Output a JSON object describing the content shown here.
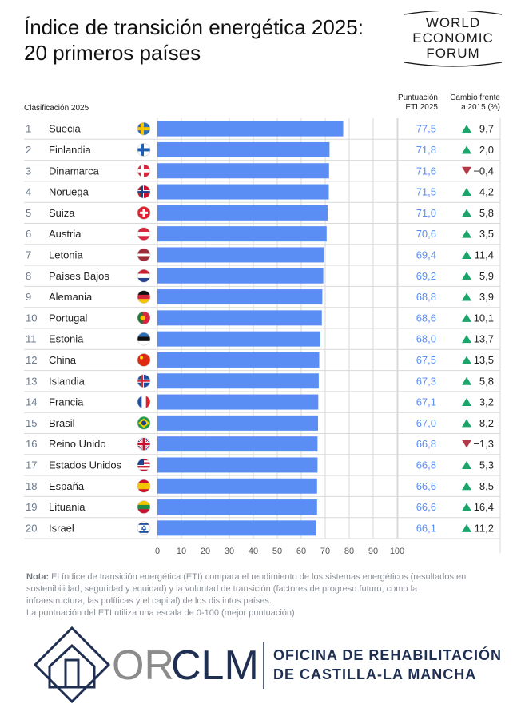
{
  "header": {
    "title_line1": "Índice de transición energética 2025:",
    "title_line2": "20 primeros países",
    "wef_logo": [
      "WORLD",
      "ECONOMIC",
      "FORUM"
    ],
    "rank_header": "Clasificación 2025",
    "score_header": [
      "Puntuación",
      "ETI 2025"
    ],
    "change_header": [
      "Cambio frente",
      "a 2015 (%)"
    ]
  },
  "colors": {
    "bar": "#5b8ef5",
    "score_text": "#5b8ef5",
    "up": "#1aa56b",
    "down": "#b23a48",
    "grid": "#d9d9d9",
    "rank_text": "#6b7a90"
  },
  "chart_data": {
    "type": "bar",
    "orientation": "horizontal",
    "xlim": [
      0,
      100
    ],
    "xticks": [
      0,
      10,
      20,
      30,
      40,
      50,
      60,
      70,
      80,
      90,
      100
    ],
    "grid": true,
    "rows": [
      {
        "rank": "1",
        "country": "Suecia",
        "flag": "sweden-flag-icon",
        "score": 77.5,
        "score_label": "77,5",
        "change": 9.7,
        "change_label": "9,7",
        "direction": "up"
      },
      {
        "rank": "2",
        "country": "Finlandia",
        "flag": "finland-flag-icon",
        "score": 71.8,
        "score_label": "71,8",
        "change": 2.0,
        "change_label": "2,0",
        "direction": "up"
      },
      {
        "rank": "3",
        "country": "Dinamarca",
        "flag": "denmark-flag-icon",
        "score": 71.6,
        "score_label": "71,6",
        "change": -0.4,
        "change_label": "−0,4",
        "direction": "down"
      },
      {
        "rank": "4",
        "country": "Noruega",
        "flag": "norway-flag-icon",
        "score": 71.5,
        "score_label": "71,5",
        "change": 4.2,
        "change_label": "4,2",
        "direction": "up"
      },
      {
        "rank": "5",
        "country": "Suiza",
        "flag": "switzerland-flag-icon",
        "score": 71.0,
        "score_label": "71,0",
        "change": 5.8,
        "change_label": "5,8",
        "direction": "up"
      },
      {
        "rank": "6",
        "country": "Austria",
        "flag": "austria-flag-icon",
        "score": 70.6,
        "score_label": "70,6",
        "change": 3.5,
        "change_label": "3,5",
        "direction": "up"
      },
      {
        "rank": "7",
        "country": "Letonia",
        "flag": "latvia-flag-icon",
        "score": 69.4,
        "score_label": "69,4",
        "change": 11.4,
        "change_label": "11,4",
        "direction": "up"
      },
      {
        "rank": "8",
        "country": "Países Bajos",
        "flag": "netherlands-flag-icon",
        "score": 69.2,
        "score_label": "69,2",
        "change": 5.9,
        "change_label": "5,9",
        "direction": "up"
      },
      {
        "rank": "9",
        "country": "Alemania",
        "flag": "germany-flag-icon",
        "score": 68.8,
        "score_label": "68,8",
        "change": 3.9,
        "change_label": "3,9",
        "direction": "up"
      },
      {
        "rank": "10",
        "country": "Portugal",
        "flag": "portugal-flag-icon",
        "score": 68.6,
        "score_label": "68,6",
        "change": 10.1,
        "change_label": "10,1",
        "direction": "up"
      },
      {
        "rank": "11",
        "country": "Estonia",
        "flag": "estonia-flag-icon",
        "score": 68.0,
        "score_label": "68,0",
        "change": 13.7,
        "change_label": "13,7",
        "direction": "up"
      },
      {
        "rank": "12",
        "country": "China",
        "flag": "china-flag-icon",
        "score": 67.5,
        "score_label": "67,5",
        "change": 13.5,
        "change_label": "13,5",
        "direction": "up"
      },
      {
        "rank": "13",
        "country": "Islandia",
        "flag": "iceland-flag-icon",
        "score": 67.3,
        "score_label": "67,3",
        "change": 5.8,
        "change_label": "5,8",
        "direction": "up"
      },
      {
        "rank": "14",
        "country": "Francia",
        "flag": "france-flag-icon",
        "score": 67.1,
        "score_label": "67,1",
        "change": 3.2,
        "change_label": "3,2",
        "direction": "up"
      },
      {
        "rank": "15",
        "country": "Brasil",
        "flag": "brazil-flag-icon",
        "score": 67.0,
        "score_label": "67,0",
        "change": 8.2,
        "change_label": "8,2",
        "direction": "up"
      },
      {
        "rank": "16",
        "country": "Reino Unido",
        "flag": "uk-flag-icon",
        "score": 66.8,
        "score_label": "66,8",
        "change": -1.3,
        "change_label": "−1,3",
        "direction": "down"
      },
      {
        "rank": "17",
        "country": "Estados Unidos",
        "flag": "usa-flag-icon",
        "score": 66.8,
        "score_label": "66,8",
        "change": 5.3,
        "change_label": "5,3",
        "direction": "up"
      },
      {
        "rank": "18",
        "country": "España",
        "flag": "spain-flag-icon",
        "score": 66.6,
        "score_label": "66,6",
        "change": 8.5,
        "change_label": "8,5",
        "direction": "up"
      },
      {
        "rank": "19",
        "country": "Lituania",
        "flag": "lithuania-flag-icon",
        "score": 66.6,
        "score_label": "66,6",
        "change": 16.4,
        "change_label": "16,4",
        "direction": "up"
      },
      {
        "rank": "20",
        "country": "Israel",
        "flag": "israel-flag-icon",
        "score": 66.1,
        "score_label": "66,1",
        "change": 11.2,
        "change_label": "11,2",
        "direction": "up"
      }
    ]
  },
  "note": {
    "label": "Nota:",
    "text": "El índice de transición energética (ETI) compara el rendimiento de los sistemas energéticos (resultados en sostenibilidad, seguridad y equidad) y la voluntad de transición (factores de progreso futuro, como la infraestructura, las políticas y el capital) de los distintos países.",
    "text2": "La puntuación del ETI utiliza una escala de 0-100 (mejor puntuación)"
  },
  "footer": {
    "brand_part1": "OR",
    "brand_part2": "CLM",
    "org_line1": "OFICINA DE REHABILITACIÓN",
    "org_line2": "DE CASTILLA-LA MANCHA"
  }
}
